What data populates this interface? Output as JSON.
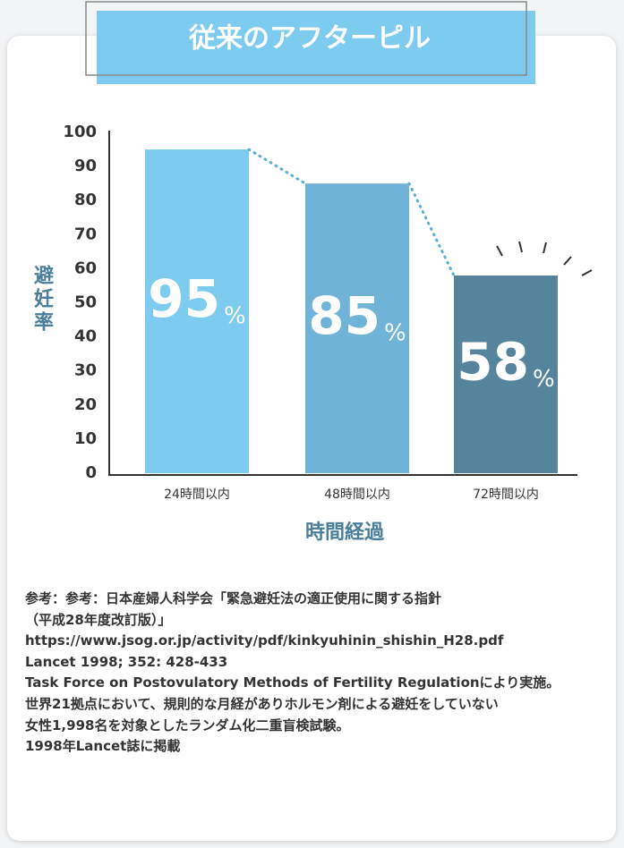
{
  "chart_data": {
    "type": "bar",
    "title": "従来のアフターピル",
    "y_label": "避妊率",
    "x_label": "時間経過",
    "categories": [
      "24時間以内",
      "48時間以内",
      "72時間以内"
    ],
    "values": [
      95,
      85,
      58
    ],
    "value_unit": "%",
    "colors": [
      "#7ecbf0",
      "#6fb3d9",
      "#56849d"
    ],
    "ylim": [
      0,
      100
    ],
    "yticks": [
      0,
      10,
      20,
      30,
      40,
      50,
      60,
      70,
      80,
      90,
      100
    ],
    "grid": false
  },
  "notes": [
    "参考：参考：日本産婦人科学会「緊急避妊法の適正使用に関する指針",
    "（平成28年度改訂版）」",
    "https://www.jsog.or.jp/activity/pdf/kinkyuhinin_shishin_H28.pdf",
    "Lancet 1998; 352: 428-433",
    "Task Force on Postovulatory Methods of Fertility Regulationにより実施。",
    "世界21拠点において、規則的な月経がありホルモン剤による避妊をしていない",
    "女性1,998名を対象としたランダム化二重盲検試験。",
    "1998年Lancet誌に掲載"
  ]
}
